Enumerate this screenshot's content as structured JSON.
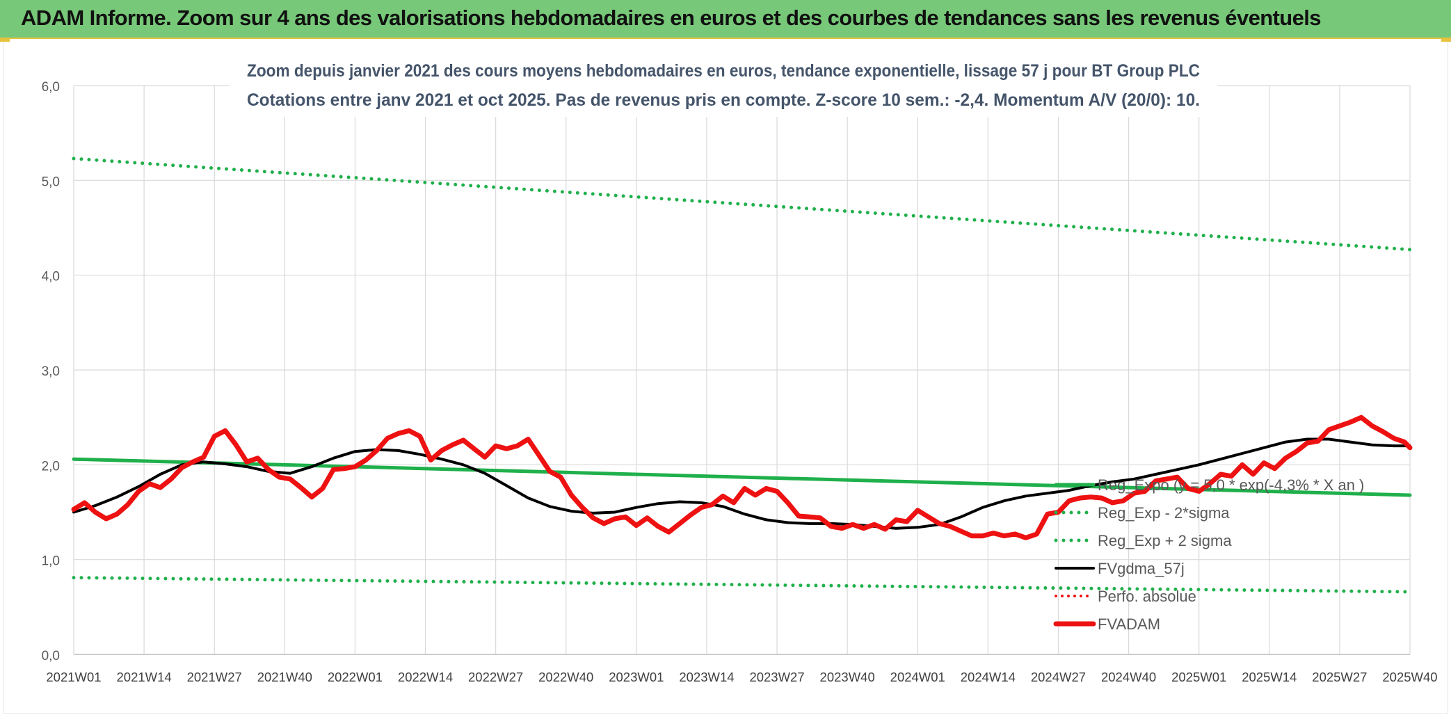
{
  "page_header": "ADAM Informe. Zoom sur 4 ans des valorisations hebdomadaires en euros et des courbes de tendances sans les revenus éventuels",
  "chart_data": {
    "type": "line",
    "title": "Zoom depuis janvier 2021 des cours moyens hebdomadaires en euros, tendance exponentielle, lissage 57 j pour BT Group PLC",
    "subtitle": "Cotations entre janv 2021 et oct 2025. Pas de revenus pris en compte. Z-score 10 sem.: -2,4. Momentum A/V (20/0): 10.",
    "xlabel": "",
    "ylabel": "",
    "ylim": [
      0,
      6
    ],
    "y_ticks": [
      "0,0",
      "1,0",
      "2,0",
      "3,0",
      "4,0",
      "5,0",
      "6,0"
    ],
    "x_ticks": [
      "2021W01",
      "2021W14",
      "2021W27",
      "2021W40",
      "2022W01",
      "2022W14",
      "2022W27",
      "2022W40",
      "2023W01",
      "2023W14",
      "2023W27",
      "2023W40",
      "2024W01",
      "2024W14",
      "2024W27",
      "2024W40",
      "2025W01",
      "2025W14",
      "2025W27",
      "2025W40"
    ],
    "grid": true,
    "legend_position": "bottom-right",
    "colors": {
      "green": "#1fb04b",
      "black": "#000000",
      "red": "#ee1111"
    },
    "series": [
      {
        "name": "Reg_Expo (y = 5,0 * exp(-4,3% *  X  an )",
        "style": "solid-green-thick",
        "x_index": [
          0,
          247
        ],
        "values": [
          2.06,
          1.68
        ]
      },
      {
        "name": "Reg_Exp - 2*sigma",
        "style": "dotted-green",
        "x_index": [
          0,
          247
        ],
        "values": [
          0.81,
          0.66
        ]
      },
      {
        "name": "Reg_Exp + 2 sigma",
        "style": "dotted-green",
        "x_index": [
          0,
          247
        ],
        "values": [
          5.23,
          4.27
        ]
      },
      {
        "name": "FVgdma_57j",
        "style": "solid-black",
        "x_index": [
          0,
          4,
          8,
          12,
          16,
          20,
          24,
          28,
          32,
          36,
          40,
          44,
          48,
          52,
          56,
          60,
          64,
          68,
          72,
          76,
          80,
          84,
          88,
          92,
          96,
          100,
          104,
          108,
          112,
          116,
          120,
          124,
          128,
          132,
          136,
          140,
          144,
          148,
          152,
          156,
          160,
          164,
          168,
          172,
          176,
          180,
          184,
          188,
          192,
          196,
          200,
          204,
          208,
          212,
          216,
          220,
          224,
          228,
          232,
          236,
          240,
          244,
          247
        ],
        "values": [
          1.5,
          1.57,
          1.66,
          1.77,
          1.9,
          2.0,
          2.03,
          2.01,
          1.98,
          1.93,
          1.91,
          1.98,
          2.07,
          2.14,
          2.16,
          2.15,
          2.11,
          2.06,
          2.0,
          1.91,
          1.78,
          1.65,
          1.56,
          1.51,
          1.49,
          1.5,
          1.55,
          1.59,
          1.61,
          1.6,
          1.56,
          1.48,
          1.42,
          1.39,
          1.38,
          1.38,
          1.37,
          1.35,
          1.33,
          1.34,
          1.37,
          1.45,
          1.55,
          1.62,
          1.67,
          1.7,
          1.73,
          1.78,
          1.82,
          1.85,
          1.9,
          1.95,
          2.0,
          2.06,
          2.12,
          2.18,
          2.24,
          2.27,
          2.27,
          2.24,
          2.21,
          2.2,
          2.2
        ]
      },
      {
        "name": "Perfo. absolue",
        "style": "dotted-red",
        "x_index": [],
        "values": []
      },
      {
        "name": "FVADAM",
        "style": "solid-red-thick",
        "x_index": [
          0,
          2,
          4,
          6,
          8,
          10,
          12,
          14,
          16,
          18,
          20,
          22,
          24,
          26,
          28,
          30,
          32,
          34,
          36,
          38,
          40,
          42,
          44,
          46,
          48,
          50,
          52,
          54,
          56,
          58,
          60,
          62,
          64,
          66,
          68,
          70,
          72,
          74,
          76,
          78,
          80,
          82,
          84,
          86,
          88,
          90,
          92,
          94,
          96,
          98,
          100,
          102,
          104,
          106,
          108,
          110,
          112,
          114,
          116,
          118,
          120,
          122,
          124,
          126,
          128,
          130,
          132,
          134,
          136,
          138,
          140,
          142,
          144,
          146,
          148,
          150,
          152,
          154,
          156,
          158,
          160,
          162,
          164,
          166,
          168,
          170,
          172,
          174,
          176,
          178,
          180,
          182,
          184,
          186,
          188,
          190,
          192,
          194,
          196,
          198,
          200,
          202,
          204,
          206,
          208,
          210,
          212,
          214,
          216,
          218,
          220,
          222,
          224,
          226,
          228,
          230,
          232,
          234,
          236,
          238,
          240,
          242,
          244,
          246,
          247
        ],
        "values": [
          1.53,
          1.6,
          1.5,
          1.43,
          1.48,
          1.58,
          1.72,
          1.8,
          1.76,
          1.85,
          1.97,
          2.03,
          2.08,
          2.3,
          2.36,
          2.21,
          2.03,
          2.07,
          1.95,
          1.87,
          1.85,
          1.76,
          1.66,
          1.75,
          1.95,
          1.96,
          1.98,
          2.05,
          2.15,
          2.28,
          2.33,
          2.36,
          2.3,
          2.05,
          2.15,
          2.21,
          2.26,
          2.17,
          2.08,
          2.2,
          2.17,
          2.2,
          2.27,
          2.1,
          1.93,
          1.87,
          1.68,
          1.55,
          1.44,
          1.38,
          1.43,
          1.45,
          1.36,
          1.44,
          1.35,
          1.29,
          1.38,
          1.47,
          1.55,
          1.58,
          1.67,
          1.6,
          1.75,
          1.68,
          1.75,
          1.72,
          1.6,
          1.46,
          1.45,
          1.44,
          1.35,
          1.33,
          1.37,
          1.33,
          1.37,
          1.32,
          1.42,
          1.4,
          1.52,
          1.45,
          1.38,
          1.35,
          1.3,
          1.25,
          1.25,
          1.28,
          1.25,
          1.27,
          1.23,
          1.27,
          1.48,
          1.5,
          1.62,
          1.65,
          1.66,
          1.65,
          1.6,
          1.62,
          1.7,
          1.72,
          1.83,
          1.85,
          1.87,
          1.75,
          1.72,
          1.8,
          1.9,
          1.88,
          2.0,
          1.9,
          2.02,
          1.96,
          2.07,
          2.14,
          2.23,
          2.25,
          2.37,
          2.41,
          2.45,
          2.5,
          2.41,
          2.35,
          2.28,
          2.24,
          2.18
        ]
      }
    ]
  }
}
